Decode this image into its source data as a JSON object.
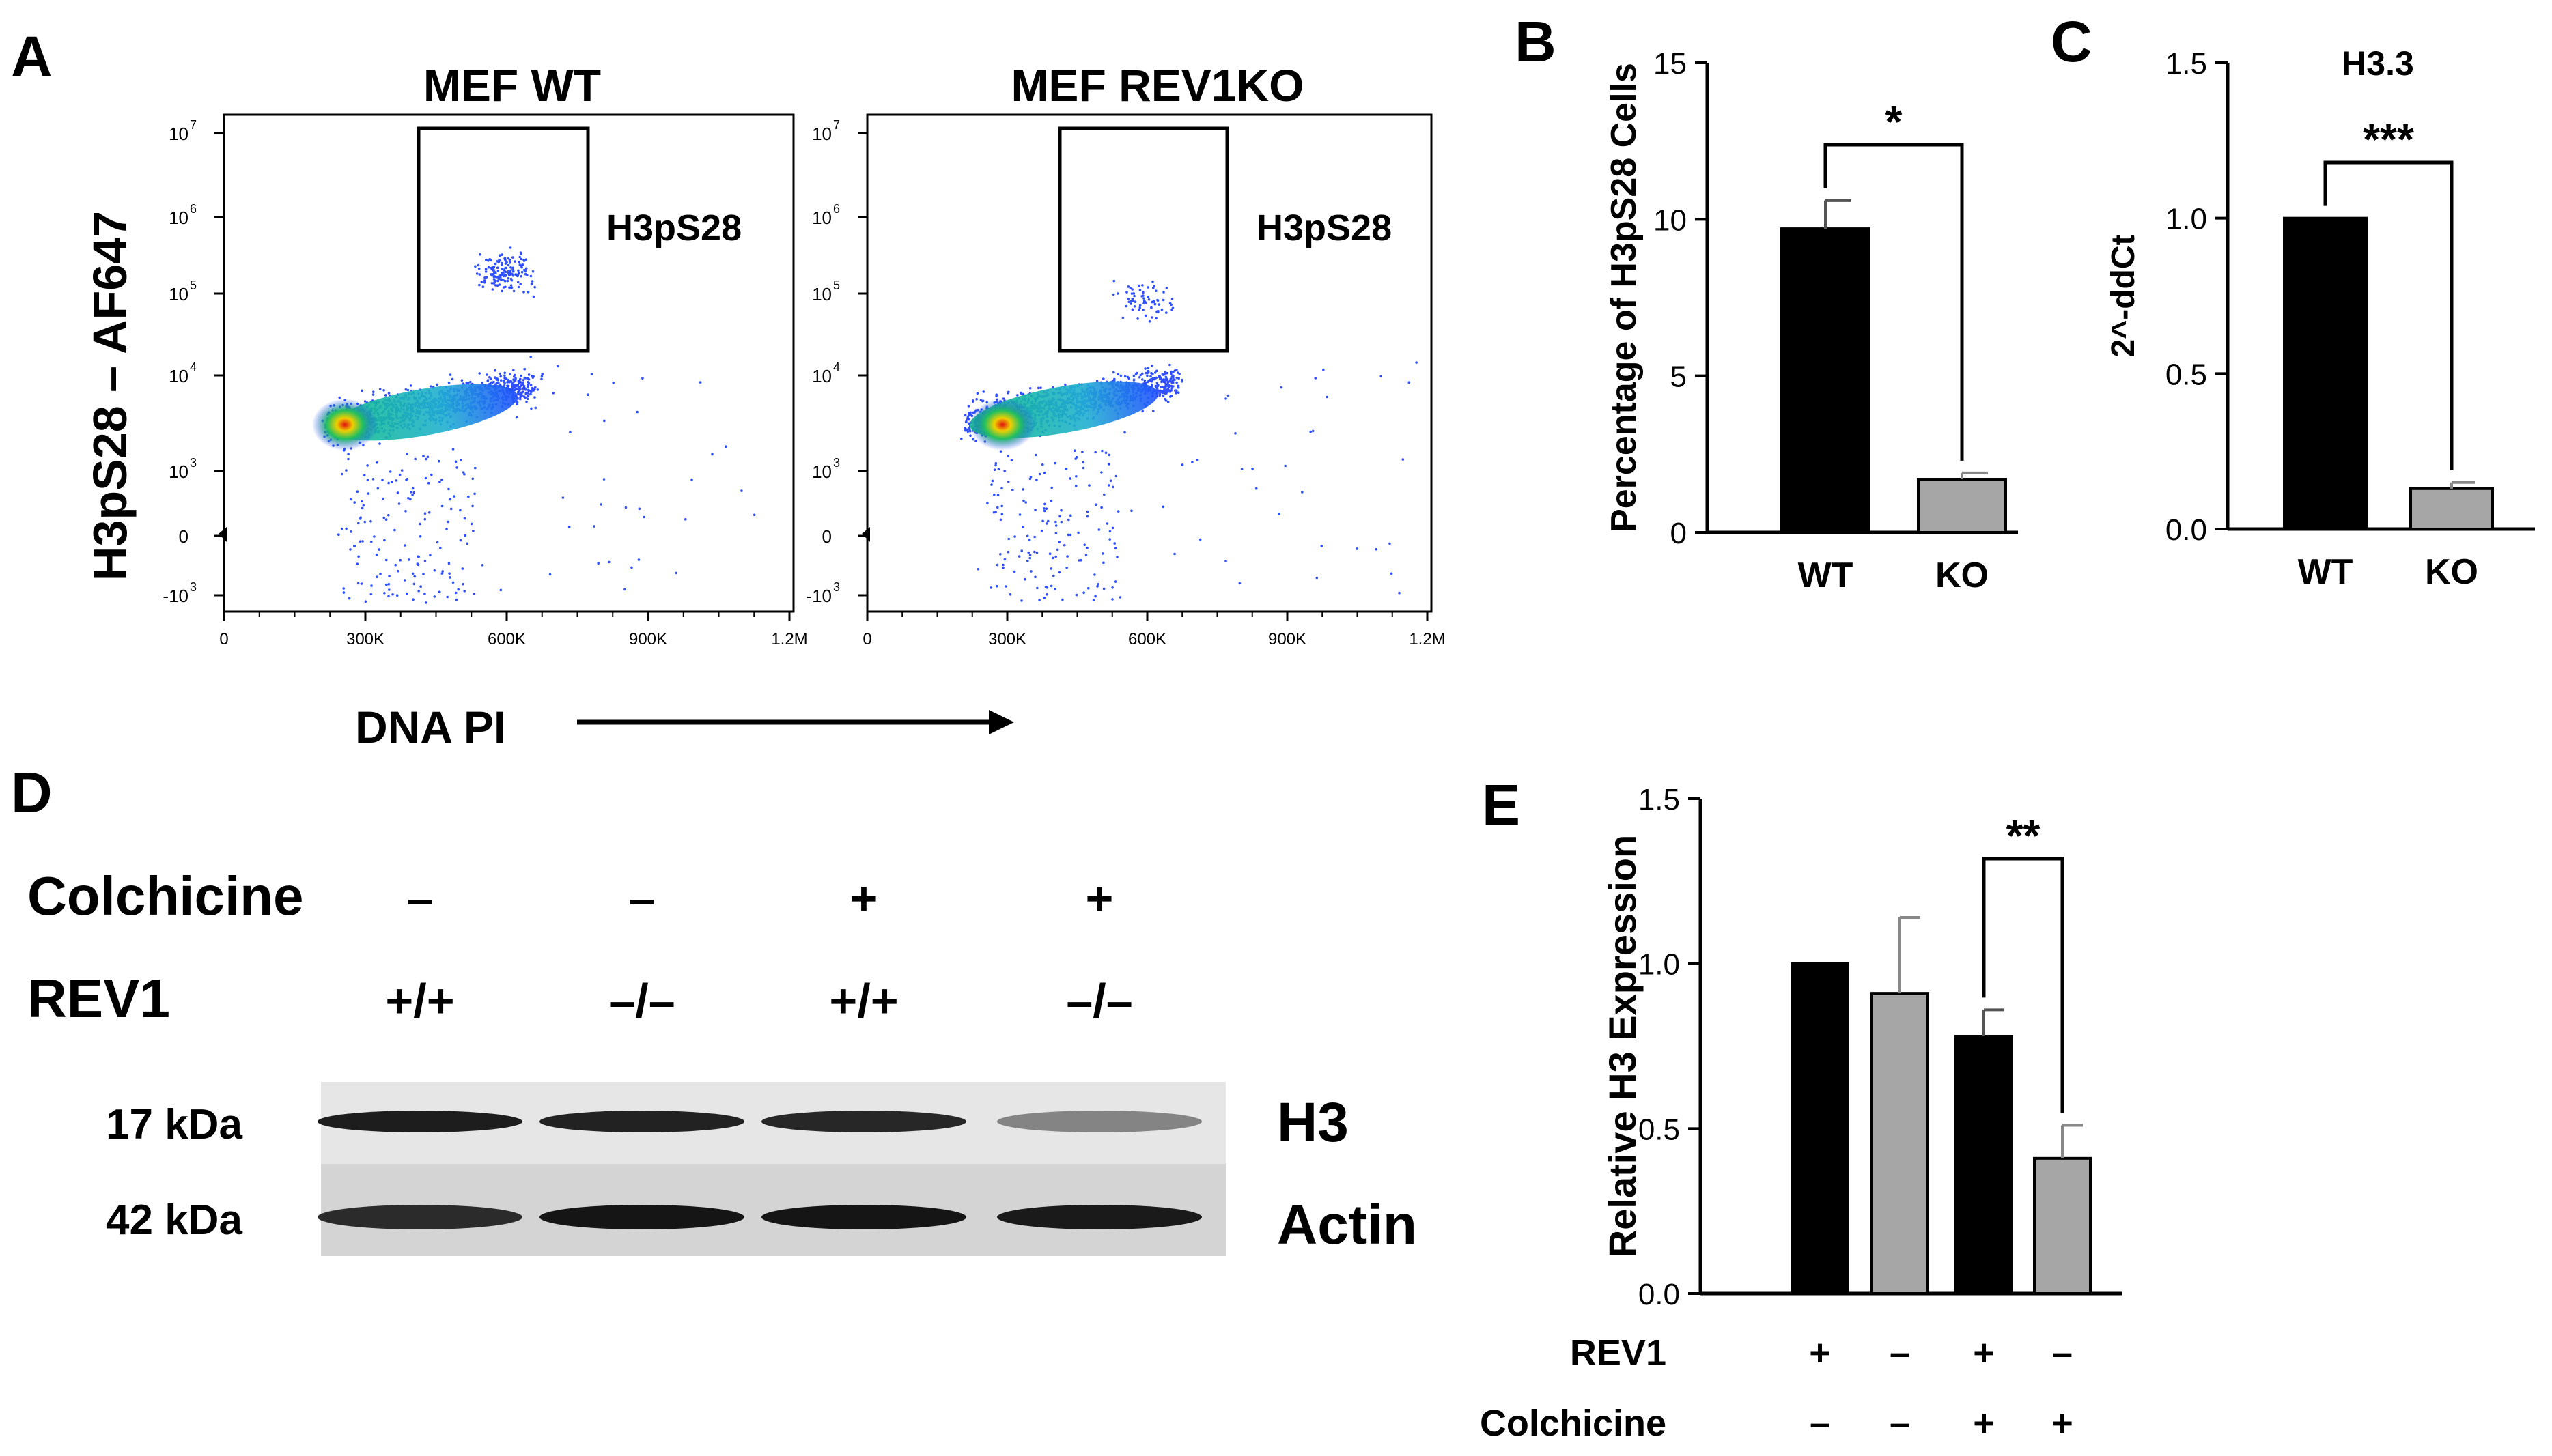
{
  "panel_labels": {
    "a": "A",
    "b": "B",
    "c": "C",
    "d": "D",
    "e": "E"
  },
  "panel_a": {
    "plots": [
      {
        "title": "MEF WT",
        "gate_label": "H3pS28"
      },
      {
        "title": "MEF REV1KO",
        "gate_label": "H3pS28"
      }
    ],
    "y_label": "H3pS28 – AF647",
    "x_label": "DNA PI",
    "y_ticks": [
      "10",
      "10",
      "10",
      "10",
      "10",
      "0",
      "-10"
    ],
    "y_tick_exps": [
      "7",
      "6",
      "5",
      "4",
      "3",
      "",
      "3"
    ],
    "x_ticks": [
      "0",
      "300K",
      "600K",
      "900K",
      "1.2M"
    ]
  },
  "chart_data": [
    {
      "type": "bar",
      "panel": "B",
      "categories": [
        "WT",
        "KO"
      ],
      "values": [
        9.7,
        1.7
      ],
      "errors": [
        0.9,
        0.2
      ],
      "ylabel": "Percentage of  H3pS28 Cells",
      "ylim": [
        0,
        15
      ],
      "yticks": [
        "0",
        "5",
        "10",
        "15"
      ],
      "significance": "*",
      "colors": [
        "#000000",
        "#a6a6a6"
      ]
    },
    {
      "type": "bar",
      "panel": "C",
      "title": "H3.3",
      "categories": [
        "WT",
        "KO"
      ],
      "values": [
        1.0,
        0.13
      ],
      "errors": [
        0.0,
        0.02
      ],
      "ylabel": "2^-ddCt",
      "ylim": [
        0,
        1.5
      ],
      "yticks": [
        "0.0",
        "0.5",
        "1.0",
        "1.5"
      ],
      "significance": "***",
      "colors": [
        "#000000",
        "#a6a6a6"
      ]
    },
    {
      "type": "bar",
      "panel": "E",
      "values": [
        1.0,
        0.91,
        0.78,
        0.41
      ],
      "errors": [
        0.0,
        0.23,
        0.08,
        0.1
      ],
      "ylabel": "Relative H3 Expression",
      "ylim": [
        0,
        1.5
      ],
      "yticks": [
        "0.0",
        "0.5",
        "1.0",
        "1.5"
      ],
      "significance": "**",
      "colors": [
        "#000000",
        "#a6a6a6",
        "#000000",
        "#a6a6a6"
      ],
      "row_labels": [
        {
          "label": "REV1",
          "values": [
            "+",
            "–",
            "+",
            "–"
          ]
        },
        {
          "label": "Colchicine",
          "values": [
            "–",
            "–",
            "+",
            "+"
          ]
        }
      ]
    }
  ],
  "panel_d": {
    "rows": [
      {
        "label": "Colchicine",
        "values": [
          "–",
          "–",
          "+",
          "+"
        ]
      },
      {
        "label": "REV1",
        "values": [
          "+/+",
          "–/–",
          "+/+",
          "–/–"
        ]
      }
    ],
    "bands": [
      {
        "kda": "17 kDa",
        "protein": "H3",
        "intensity": [
          0.92,
          0.9,
          0.88,
          0.45
        ]
      },
      {
        "kda": "42 kDa",
        "protein": "Actin",
        "intensity": [
          0.85,
          0.95,
          0.95,
          0.93
        ]
      }
    ]
  }
}
